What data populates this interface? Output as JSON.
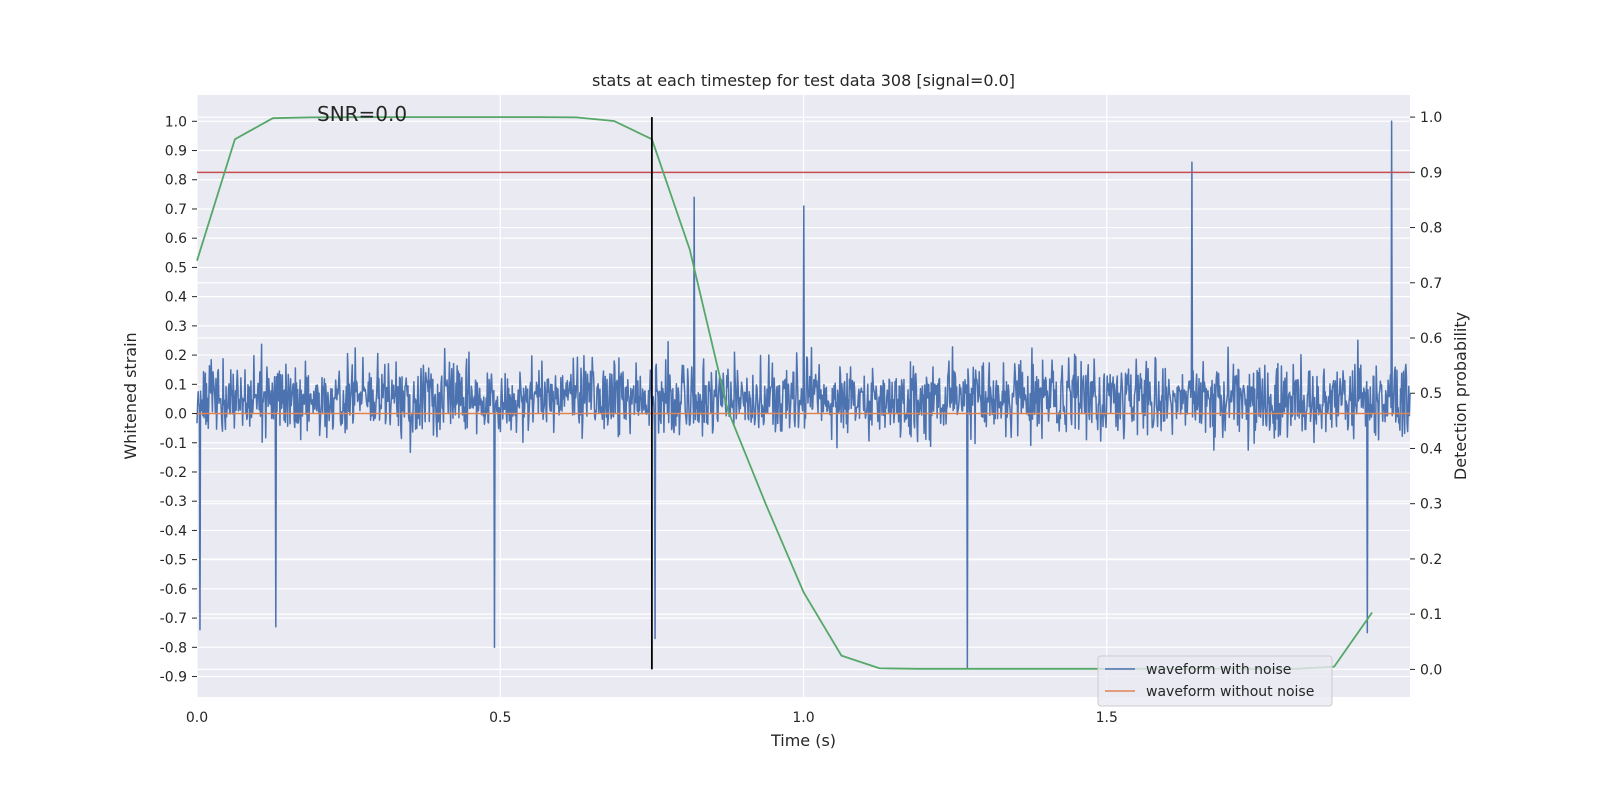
{
  "chart_data": {
    "type": "line",
    "title": "stats at each timestep for test data 308 [signal=0.0]",
    "xlabel": "Time (s)",
    "ylabel": "Whitened strain",
    "y2label": "Detection probability",
    "annotation": "SNR=0.0",
    "xlim": [
      0.0,
      2.0
    ],
    "ylim": [
      -0.97,
      1.09
    ],
    "y2lim": [
      -0.05,
      1.04
    ],
    "xticks": [
      0.0,
      0.5,
      1.0,
      1.5
    ],
    "xtick_labels": [
      "0.0",
      "0.5",
      "1.0",
      "1.5"
    ],
    "yticks": [
      1.0,
      0.9,
      0.8,
      0.7,
      0.6,
      0.5,
      0.4,
      0.3,
      0.2,
      0.1,
      0.0,
      -0.1,
      -0.2,
      -0.3,
      -0.4,
      -0.5,
      -0.6,
      -0.7,
      -0.8,
      -0.9
    ],
    "ytick_labels": [
      "1.0",
      "0.9",
      "0.8",
      "0.7",
      "0.6",
      "0.5",
      "0.4",
      "0.3",
      "0.2",
      "0.1",
      "0.0",
      "-0.1",
      "-0.2",
      "-0.3",
      "-0.4",
      "-0.5",
      "-0.6",
      "-0.7",
      "-0.8",
      "-0.9"
    ],
    "y2ticks": [
      1.0,
      0.9,
      0.8,
      0.7,
      0.6,
      0.5,
      0.4,
      0.3,
      0.2,
      0.1,
      0.0
    ],
    "y2tick_labels": [
      "1.0",
      "0.9",
      "0.8",
      "0.7",
      "0.6",
      "0.5",
      "0.4",
      "0.3",
      "0.2",
      "0.1",
      "0.0"
    ],
    "grid": true,
    "legend_position": "lower-right",
    "series": [
      {
        "name": "waveform with noise",
        "axis": "left",
        "color": "#4c72b0",
        "kind": "noise",
        "n_points": 2048,
        "seed": 308,
        "typical_range": [
          -0.45,
          0.6
        ],
        "spikes": [
          {
            "x": 1.97,
            "y": 1.0
          },
          {
            "x": 1.64,
            "y": 0.86
          },
          {
            "x": 0.82,
            "y": 0.74
          },
          {
            "x": 1.27,
            "y": -0.87
          },
          {
            "x": 0.49,
            "y": -0.8
          },
          {
            "x": 0.755,
            "y": -0.77
          },
          {
            "x": 0.005,
            "y": -0.74
          },
          {
            "x": 0.13,
            "y": -0.73
          },
          {
            "x": 1.93,
            "y": -0.75
          },
          {
            "x": 1.0,
            "y": 0.71
          }
        ]
      },
      {
        "name": "waveform without noise",
        "axis": "left",
        "color": "#dd8452",
        "x": [
          0.0,
          2.0
        ],
        "y": [
          0.0,
          0.0
        ]
      },
      {
        "name": "detection probability",
        "axis": "right",
        "color": "#55a868",
        "x": [
          0.0,
          0.0625,
          0.125,
          0.1875,
          0.25,
          0.3125,
          0.375,
          0.4375,
          0.5,
          0.5625,
          0.625,
          0.6875,
          0.75,
          0.8125,
          0.875,
          0.9375,
          1.0,
          1.0625,
          1.125,
          1.1875,
          1.25,
          1.3125,
          1.375,
          1.4375,
          1.5,
          1.5625,
          1.625,
          1.6875,
          1.75,
          1.8125,
          1.875,
          1.9375
        ],
        "y": [
          0.74,
          0.96,
          0.998,
          0.9995,
          0.9998,
          0.9999,
          1.0,
          1.0,
          1.0,
          1.0,
          0.9995,
          0.993,
          0.96,
          0.76,
          0.47,
          0.3,
          0.14,
          0.025,
          0.002,
          0.001,
          0.001,
          0.001,
          0.001,
          0.001,
          0.001,
          0.001,
          0.001,
          0.001,
          0.001,
          0.001,
          0.005,
          0.103
        ]
      }
    ],
    "threshold": {
      "axis": "right",
      "value": 0.9,
      "color": "#c44e52"
    },
    "marker_line": {
      "x": 0.75,
      "y_from": 0.0,
      "y_to": 1.0,
      "color": "#000000"
    },
    "legend": [
      "waveform with noise",
      "waveform without noise"
    ]
  }
}
